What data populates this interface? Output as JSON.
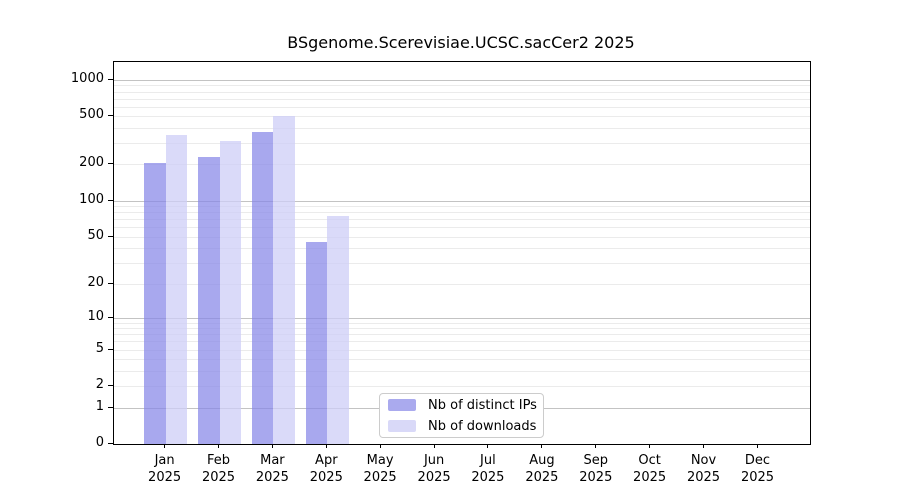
{
  "figure": {
    "background": "#ffffff"
  },
  "legend": {
    "items": [
      {
        "label": "Nb of distinct IPs",
        "color": "#aaaaee"
      },
      {
        "label": "Nb of downloads",
        "color": "#d9d9f8"
      }
    ]
  },
  "colors": {
    "grid_major": "#c3c3c3",
    "grid_minor": "#ebebeb",
    "axis": "#000000",
    "background": "#ffffff",
    "text": "#000000"
  },
  "chart_data": {
    "type": "bar",
    "title": "BSgenome.Scerevisiae.UCSC.sacCer2 2025",
    "y_scale": "log1p",
    "categories": [
      "Jan",
      "Feb",
      "Mar",
      "Apr",
      "May",
      "Jun",
      "Jul",
      "Aug",
      "Sep",
      "Oct",
      "Nov",
      "Dec"
    ],
    "year_label": "2025",
    "series": [
      {
        "name": "Nb of distinct IPs",
        "legend_color": "#aaaaee",
        "bar_color": "rgba(135,135,232,0.72)",
        "values": [
          205,
          230,
          370,
          45,
          0,
          0,
          0,
          0,
          0,
          0,
          0,
          0
        ]
      },
      {
        "name": "Nb of downloads",
        "legend_color": "#d9d9f8",
        "bar_color": "rgba(206,206,247,0.75)",
        "values": [
          350,
          315,
          505,
          74,
          0,
          0,
          0,
          0,
          0,
          0,
          0,
          0
        ]
      }
    ],
    "y_ticks": [
      0,
      1,
      2,
      5,
      10,
      20,
      50,
      100,
      200,
      500,
      1000
    ],
    "major_gridlines": [
      1,
      10,
      100,
      1000
    ],
    "minor_gridlines": [
      2,
      3,
      4,
      5,
      6,
      7,
      8,
      9,
      20,
      30,
      40,
      50,
      60,
      70,
      80,
      90,
      200,
      300,
      400,
      500,
      600,
      700,
      800,
      900
    ],
    "ylim": [
      0,
      1400
    ],
    "grid": true,
    "legend_position": "bottom-center-inside",
    "xlabel": "",
    "ylabel": ""
  }
}
